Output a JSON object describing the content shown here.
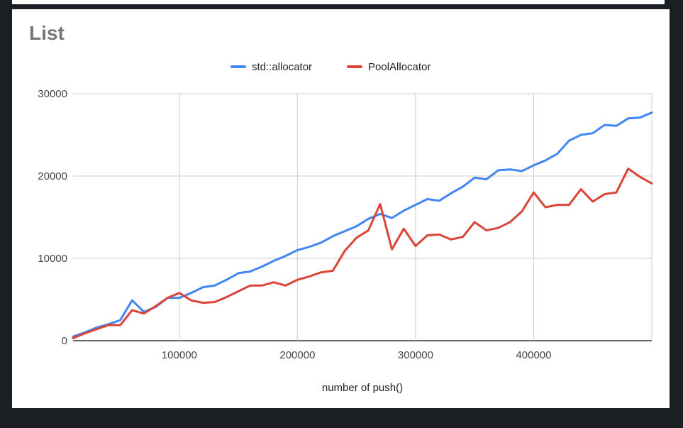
{
  "chart_data": {
    "type": "line",
    "title": "List",
    "xlabel": "number of push()",
    "ylabel": "",
    "xlim": [
      10000,
      500000
    ],
    "ylim": [
      0,
      30000
    ],
    "x_ticks": [
      100000,
      200000,
      300000,
      400000
    ],
    "y_ticks": [
      0,
      10000,
      20000,
      30000
    ],
    "grid": true,
    "legend_position": "top",
    "x": [
      10000,
      20000,
      30000,
      40000,
      50000,
      60000,
      70000,
      80000,
      90000,
      100000,
      110000,
      120000,
      130000,
      140000,
      150000,
      160000,
      170000,
      180000,
      190000,
      200000,
      210000,
      220000,
      230000,
      240000,
      250000,
      260000,
      270000,
      280000,
      290000,
      300000,
      310000,
      320000,
      330000,
      340000,
      350000,
      360000,
      370000,
      380000,
      390000,
      400000,
      410000,
      420000,
      430000,
      440000,
      450000,
      460000,
      470000,
      480000,
      490000,
      500000
    ],
    "series": [
      {
        "name": "std::allocator",
        "color": "#4285f4",
        "values": [
          500,
          1000,
          1600,
          2000,
          2500,
          4900,
          3500,
          4100,
          5200,
          5200,
          5800,
          6500,
          6700,
          7400,
          8200,
          8400,
          9000,
          9700,
          10300,
          11000,
          11400,
          11900,
          12700,
          13300,
          13900,
          14800,
          15400,
          14900,
          15800,
          16500,
          17200,
          17000,
          17900,
          18700,
          19800,
          19600,
          20700,
          20800,
          20600,
          21300,
          21900,
          22700,
          24300,
          25000,
          25200,
          26200,
          26100,
          27000,
          27100,
          27700
        ]
      },
      {
        "name": "PoolAllocator",
        "color": "#db4437",
        "values": [
          300,
          900,
          1400,
          1900,
          1900,
          3700,
          3300,
          4200,
          5200,
          5800,
          4900,
          4600,
          4700,
          5300,
          6000,
          6700,
          6700,
          7100,
          6700,
          7400,
          7800,
          8300,
          8500,
          10900,
          12500,
          13400,
          16600,
          11100,
          13600,
          11500,
          12800,
          12900,
          12300,
          12600,
          14400,
          13400,
          13700,
          14400,
          15700,
          18000,
          16200,
          16500,
          16500,
          18400,
          16900,
          17800,
          18000,
          20900,
          19900,
          19100
        ]
      }
    ]
  }
}
